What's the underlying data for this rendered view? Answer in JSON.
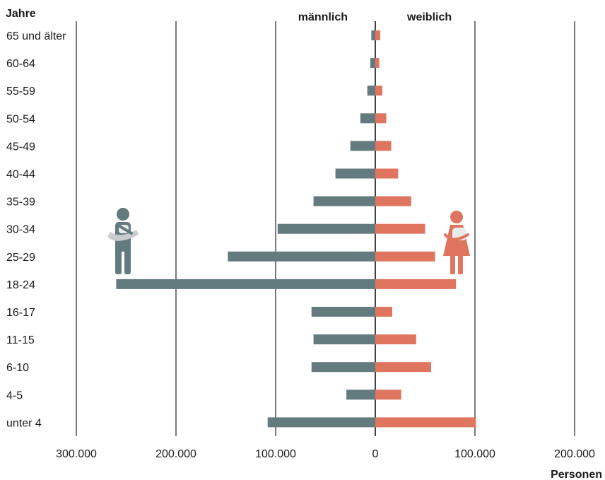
{
  "chart_data": {
    "type": "bar",
    "orientation": "horizontal-diverging",
    "ylabel": "Jahre",
    "xlabel": "Personen",
    "categories": [
      "65 und älter",
      "60-64",
      "55-59",
      "50-54",
      "45-49",
      "40-44",
      "35-39",
      "30-34",
      "25-29",
      "18-24",
      "16-17",
      "11-15",
      "6-10",
      "4-5",
      "unter 4"
    ],
    "series": [
      {
        "name": "männlich",
        "color": "#637a7e",
        "side": "left",
        "values": [
          4000,
          5000,
          8000,
          15000,
          25000,
          40000,
          62000,
          98000,
          148000,
          260000,
          64000,
          62000,
          64000,
          29000,
          108000
        ]
      },
      {
        "name": "weiblich",
        "color": "#e0755f",
        "side": "right",
        "values": [
          5000,
          4000,
          7000,
          11000,
          16000,
          23000,
          36000,
          50000,
          60000,
          81000,
          17000,
          41000,
          56000,
          26000,
          101000
        ]
      }
    ],
    "xlim": [
      -300000,
      200000
    ],
    "xticks": [
      -300000,
      -200000,
      -100000,
      0,
      100000,
      200000
    ],
    "xtick_labels": [
      "300.000",
      "200.000",
      "100.000",
      "0",
      "100.000",
      "200.000"
    ],
    "grid": true,
    "icons": {
      "male": "man-with-baby-icon",
      "female": "woman-with-baby-icon"
    }
  }
}
